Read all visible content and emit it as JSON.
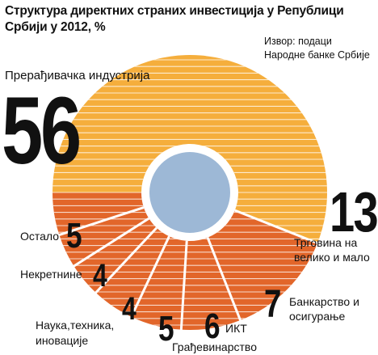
{
  "header": {
    "title_line1": "Структура директних страних инвестиција у Републици",
    "title_line2": "Србији у 2012, %",
    "source_line1": "Извор: подаци",
    "source_line2": "Народне банке Србије"
  },
  "colors": {
    "manufacturing": "#F5AE3C",
    "others": "#E2662A",
    "center": "#9DB8D6",
    "stripe": "#ffffff"
  },
  "chart_data": {
    "type": "pie",
    "title": "Структура директних страних инвестиција у Републици Србији у 2012, %",
    "slices": [
      {
        "label": "Прерађивачка индустрија",
        "value": 56
      },
      {
        "label": "Трговина на велико и мало",
        "value": 13
      },
      {
        "label": "Банкарство и осигурање",
        "value": 7
      },
      {
        "label": "ИКТ",
        "value": 6
      },
      {
        "label": "Грађевинарство",
        "value": 5
      },
      {
        "label": "Наука,техника, иновације",
        "value": 4
      },
      {
        "label": "Некретнине",
        "value": 4
      },
      {
        "label": "Остало",
        "value": 5
      }
    ],
    "label_lines": {
      "manufacturing": [
        "Прерађивачка индустрија"
      ],
      "trade": [
        "Трговина на",
        "велико и мало"
      ],
      "banking": [
        "Банкарство и",
        "осигурање"
      ],
      "ict": [
        "ИКТ"
      ],
      "construction": [
        "Грађевинарство"
      ],
      "science": [
        "Наука,техника,",
        "иновације"
      ],
      "realestate": [
        "Некретнине"
      ],
      "other": [
        "Остало"
      ]
    }
  }
}
